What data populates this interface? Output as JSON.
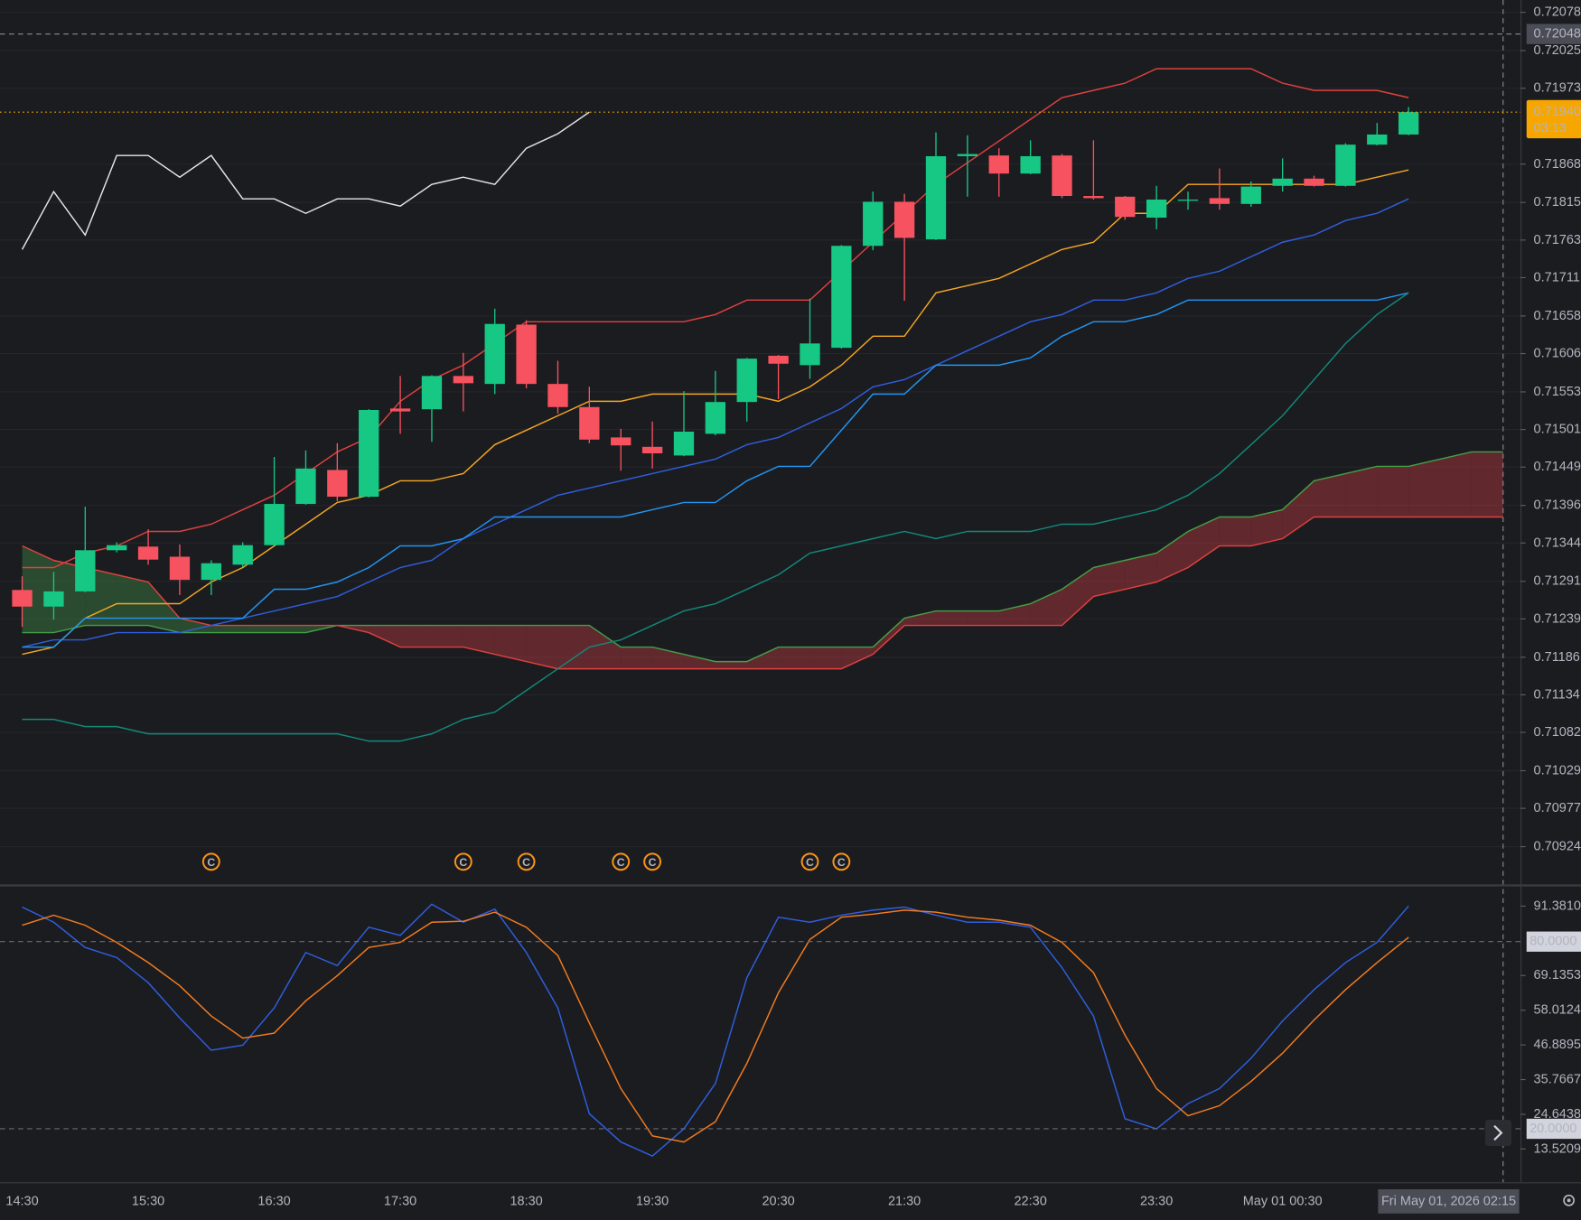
{
  "chart_data": [
    {
      "type": "candlestick",
      "categories": [
        "14:30",
        null,
        null,
        null,
        "15:30",
        null,
        null,
        null,
        "16:30",
        null,
        null,
        null,
        "17:30",
        null,
        null,
        null,
        "18:30",
        null,
        null,
        null,
        "19:30",
        null,
        null,
        null,
        "20:30",
        null,
        null,
        null,
        "21:30",
        null,
        null,
        null,
        "22:30",
        null,
        null,
        null,
        "23:30",
        null,
        null,
        null,
        "May 01 00:30",
        null,
        null,
        null,
        null,
        null,
        null,
        null
      ],
      "open": [
        0.71279,
        0.71256,
        0.71277,
        0.71334,
        0.71339,
        0.71325,
        0.71293,
        0.71314,
        0.71341,
        0.71398,
        0.71445,
        0.71408,
        0.7153,
        0.71529,
        0.71575,
        0.71564,
        0.71646,
        0.71564,
        0.71532,
        0.7149,
        0.71477,
        0.71465,
        0.71495,
        0.71539,
        0.71603,
        0.7159,
        0.71614,
        0.71755,
        0.71816,
        0.71764,
        0.71879,
        0.7188,
        0.71855,
        0.7188,
        0.71824,
        0.71823,
        0.71794,
        0.71818,
        0.71821,
        0.71813,
        0.71838,
        0.71848,
        0.71838,
        0.71895,
        0.71909,
        null,
        null,
        null
      ],
      "high": [
        0.71298,
        0.71304,
        0.71394,
        0.71345,
        0.71363,
        0.71342,
        0.7132,
        0.71345,
        0.71463,
        0.71472,
        0.71482,
        0.71529,
        0.71575,
        0.71576,
        0.71607,
        0.71668,
        0.71652,
        0.71596,
        0.7156,
        0.71502,
        0.71512,
        0.71554,
        0.71582,
        0.716,
        0.71604,
        0.71682,
        0.71756,
        0.7183,
        0.71827,
        0.71912,
        0.71908,
        0.7189,
        0.71901,
        0.71882,
        0.71901,
        0.71824,
        0.71838,
        0.7183,
        0.71862,
        0.71844,
        0.71876,
        0.71852,
        0.71897,
        0.71925,
        0.71947,
        null,
        null,
        null
      ],
      "low": [
        0.71228,
        0.71238,
        0.71276,
        0.71331,
        0.71314,
        0.71272,
        0.71272,
        0.71311,
        0.7134,
        0.71397,
        0.71402,
        0.71407,
        0.71495,
        0.71484,
        0.71526,
        0.7155,
        0.71558,
        0.71523,
        0.71482,
        0.71444,
        0.71447,
        0.71464,
        0.71493,
        0.71512,
        0.71543,
        0.71571,
        0.71613,
        0.71749,
        0.71679,
        0.71763,
        0.71823,
        0.71823,
        0.71854,
        0.71821,
        0.71819,
        0.71791,
        0.71778,
        0.71805,
        0.71805,
        0.71809,
        0.7183,
        0.71837,
        0.71837,
        0.71894,
        0.71908,
        null,
        null,
        null
      ],
      "close": [
        0.71256,
        0.71277,
        0.71334,
        0.71341,
        0.71321,
        0.71293,
        0.71316,
        0.71341,
        0.71398,
        0.71447,
        0.71408,
        0.71528,
        0.71526,
        0.71575,
        0.71565,
        0.71647,
        0.71564,
        0.71532,
        0.71487,
        0.71479,
        0.71468,
        0.71498,
        0.71539,
        0.71599,
        0.71592,
        0.7162,
        0.71755,
        0.71816,
        0.71766,
        0.71879,
        0.71882,
        0.71855,
        0.71879,
        0.71824,
        0.71821,
        0.71795,
        0.71819,
        0.71819,
        0.71813,
        0.71837,
        0.71848,
        0.71838,
        0.71895,
        0.71909,
        0.7194,
        null,
        null,
        null
      ],
      "up_color": "#17c784",
      "down_color": "#f7525f",
      "series": [
        {
          "color": "#e0413f",
          "values": [
            0.7131,
            0.7131,
            0.7133,
            0.7134,
            0.7136,
            0.7136,
            0.7137,
            0.7139,
            0.7141,
            0.7144,
            0.7147,
            0.7149,
            0.7154,
            0.7157,
            0.7159,
            0.7162,
            0.7165,
            0.7165,
            0.7165,
            0.7165,
            0.7165,
            0.7165,
            0.7166,
            0.7168,
            0.7168,
            0.7168,
            0.7172,
            0.7176,
            0.718,
            0.7184,
            0.7187,
            0.719,
            0.7193,
            0.7196,
            0.7197,
            0.7198,
            0.72,
            0.72,
            0.72,
            0.72,
            0.7198,
            0.7197,
            0.7197,
            0.7197,
            0.7196,
            null,
            null,
            null
          ]
        },
        {
          "color": "#f5a623",
          "values": [
            0.7119,
            0.712,
            0.7124,
            0.7126,
            0.7126,
            0.7126,
            0.7129,
            0.7131,
            0.7134,
            0.7137,
            0.714,
            0.7141,
            0.7143,
            0.7143,
            0.7144,
            0.7148,
            0.715,
            0.7152,
            0.7154,
            0.7154,
            0.7155,
            0.7155,
            0.7155,
            0.7155,
            0.7154,
            0.7156,
            0.7159,
            0.7163,
            0.7163,
            0.7169,
            0.717,
            0.7171,
            0.7173,
            0.7175,
            0.7176,
            0.718,
            0.718,
            0.7184,
            0.7184,
            0.7184,
            0.7184,
            0.7184,
            0.7184,
            0.7185,
            0.7186,
            null,
            null,
            null
          ]
        },
        {
          "color": "#2f5fe0",
          "values": [
            0.712,
            0.7121,
            0.7121,
            0.7122,
            0.7122,
            0.7122,
            0.7123,
            0.7124,
            0.7125,
            0.7126,
            0.7127,
            0.7129,
            0.7131,
            0.7132,
            0.7135,
            0.7137,
            0.7139,
            0.7141,
            0.7142,
            0.7143,
            0.7144,
            0.7145,
            0.7146,
            0.7148,
            0.7149,
            0.7151,
            0.7153,
            0.7156,
            0.7157,
            0.7159,
            0.7161,
            0.7163,
            0.7165,
            0.7166,
            0.7168,
            0.7168,
            0.7169,
            0.7171,
            0.7172,
            0.7174,
            0.7176,
            0.7177,
            0.7179,
            0.718,
            0.7182,
            null,
            null,
            null
          ]
        },
        {
          "color": "#2196f3",
          "values": [
            0.712,
            0.712,
            0.7124,
            0.7124,
            0.7124,
            0.7124,
            0.7124,
            0.7124,
            0.7128,
            0.7128,
            0.7129,
            0.7131,
            0.7134,
            0.7134,
            0.7135,
            0.7138,
            0.7138,
            0.7138,
            0.7138,
            0.7138,
            0.7139,
            0.714,
            0.714,
            0.7143,
            0.7145,
            0.7145,
            0.715,
            0.7155,
            0.7155,
            0.7159,
            0.7159,
            0.7159,
            0.716,
            0.7163,
            0.7165,
            0.7165,
            0.7166,
            0.7168,
            0.7168,
            0.7168,
            0.7168,
            0.7168,
            0.7168,
            0.7168,
            0.7169,
            null,
            null,
            null
          ]
        },
        {
          "color": "#12897a",
          "values": [
            0.711,
            0.711,
            0.7109,
            0.7109,
            0.7108,
            0.7108,
            0.7108,
            0.7108,
            0.7108,
            0.7108,
            0.7108,
            0.7107,
            0.7107,
            0.7108,
            0.711,
            0.7111,
            0.7114,
            0.7117,
            0.712,
            0.7121,
            0.7123,
            0.7125,
            0.7126,
            0.7128,
            0.713,
            0.7133,
            0.7134,
            0.7135,
            0.7136,
            0.7135,
            0.7136,
            0.7136,
            0.7136,
            0.7137,
            0.7137,
            0.7138,
            0.7139,
            0.7141,
            0.7144,
            0.7148,
            0.7152,
            0.7157,
            0.7162,
            0.7166,
            0.7169,
            null,
            null,
            null
          ]
        },
        {
          "color": "#e6e6e6",
          "values": [
            0.7175,
            0.7183,
            0.7177,
            0.7188,
            0.7188,
            0.7185,
            0.7188,
            0.7182,
            0.7182,
            0.718,
            0.7182,
            0.7182,
            0.7181,
            0.7184,
            0.7185,
            0.7184,
            0.7189,
            0.7191,
            0.7194,
            null,
            null,
            null,
            null,
            null,
            null,
            null,
            null,
            null,
            null,
            null,
            null,
            null,
            null,
            null,
            null,
            null,
            null,
            null,
            null,
            null,
            null,
            null,
            null,
            null,
            null,
            null,
            null,
            null
          ]
        }
      ],
      "cloud": {
        "lines": [
          {
            "color": "#43a047",
            "values": [
              0.7122,
              0.7122,
              0.7123,
              0.7123,
              0.7123,
              0.7122,
              0.7122,
              0.7122,
              0.7122,
              0.7122,
              0.7123,
              0.7123,
              0.7123,
              0.7123,
              0.7123,
              0.7123,
              0.7123,
              0.7123,
              0.7123,
              0.712,
              0.712,
              0.7119,
              0.7118,
              0.7118,
              0.712,
              0.712,
              0.712,
              0.712,
              0.7124,
              0.7125,
              0.7125,
              0.7125,
              0.7126,
              0.7128,
              0.7131,
              0.7132,
              0.7133,
              0.7136,
              0.7138,
              0.7138,
              0.7139,
              0.7143,
              0.7144,
              0.7145,
              0.7145,
              0.7146,
              0.7147,
              0.7147
            ]
          },
          {
            "color": "#e0413f",
            "values": [
              0.7134,
              0.7132,
              0.7131,
              0.713,
              0.7129,
              0.7124,
              0.7123,
              0.7123,
              0.7123,
              0.7123,
              0.7123,
              0.7122,
              0.712,
              0.712,
              0.712,
              0.7119,
              0.7118,
              0.7117,
              0.7117,
              0.7117,
              0.7117,
              0.7117,
              0.7117,
              0.7117,
              0.7117,
              0.7117,
              0.7117,
              0.7119,
              0.7123,
              0.7123,
              0.7123,
              0.7123,
              0.7123,
              0.7123,
              0.7127,
              0.7128,
              0.7129,
              0.7131,
              0.7134,
              0.7134,
              0.7135,
              0.7138,
              0.7138,
              0.7138,
              0.7138,
              0.7138,
              0.7138,
              0.7138
            ]
          }
        ],
        "fill_first_above": "rgba(214,60,70,0.38)",
        "fill_second_above": "rgba(76,175,80,0.32)"
      },
      "signals": [
        null,
        null,
        null,
        null,
        null,
        null,
        "C",
        null,
        null,
        null,
        null,
        null,
        null,
        null,
        "C",
        null,
        "C",
        null,
        null,
        "C",
        "C",
        null,
        null,
        null,
        null,
        "C",
        "C",
        null,
        null,
        null,
        null,
        null,
        null,
        null,
        null,
        null,
        null,
        null,
        null,
        null,
        null,
        null,
        null,
        null,
        null,
        null,
        null,
        null
      ],
      "signal_color": "#f7931a",
      "ylim": [
        0.70871,
        0.72095
      ],
      "yticks": [
        0.72078,
        0.72025,
        0.71973,
        0.71868,
        0.71815,
        0.71763,
        0.71711,
        0.71658,
        0.71606,
        0.71553,
        0.71501,
        0.71449,
        0.71396,
        0.71344,
        0.71291,
        0.71239,
        0.71186,
        0.71134,
        0.71082,
        0.71029,
        0.70977,
        0.70924
      ],
      "grid": true,
      "crosshair_price": 0.72048,
      "crosshair_time": "Fri May 01, 2026 02:15",
      "last_price": {
        "value": 0.7194,
        "label": "0.71940"
      },
      "last_price_color": "#f7a600",
      "countdown": "03:13"
    },
    {
      "type": "line",
      "series": [
        {
          "color": "#2f5fe0",
          "values": [
            91.06,
            86.21,
            78.13,
            74.9,
            66.83,
            55.52,
            45.18,
            46.8,
            58.75,
            76.52,
            72.32,
            84.6,
            82.0,
            92.0,
            86.21,
            90.4,
            76.52,
            58.75,
            24.83,
            15.78,
            11.26,
            19.98,
            34.52,
            68.44,
            87.83,
            86.21,
            88.47,
            90.09,
            91.06,
            88.47,
            86.21,
            86.21,
            84.6,
            71.67,
            56.17,
            23.22,
            19.98,
            28.06,
            32.9,
            42.6,
            54.55,
            64.6,
            73.29,
            79.75,
            91.38,
            null,
            null,
            null
          ]
        },
        {
          "color": "#f57c1f",
          "values": [
            85.24,
            88.47,
            85.24,
            79.75,
            73.29,
            65.86,
            56.17,
            49.06,
            50.67,
            61.01,
            69.09,
            78.13,
            79.75,
            86.21,
            86.53,
            89.44,
            84.6,
            75.55,
            53.91,
            32.9,
            17.72,
            15.78,
            22.24,
            40.98,
            63.6,
            80.72,
            87.83,
            88.8,
            90.09,
            89.44,
            87.83,
            86.86,
            85.24,
            79.75,
            70.06,
            50.03,
            32.9,
            24.18,
            27.41,
            35.17,
            44.22,
            54.87,
            64.6,
            73.29,
            81.37,
            null,
            null,
            null
          ]
        }
      ],
      "ylim": [
        2.86,
        97.52
      ],
      "yticks": [
        {
          "value": 91.381,
          "label": "91.3810"
        },
        {
          "value": 69.1353,
          "label": "69.1353"
        },
        {
          "value": 58.0124,
          "label": "58.0124"
        },
        {
          "value": 46.8895,
          "label": "46.8895"
        },
        {
          "value": 35.7667,
          "label": "35.7667"
        },
        {
          "value": 24.6438,
          "label": "24.6438"
        },
        {
          "value": 13.5209,
          "label": "13.5209"
        }
      ],
      "levels": [
        {
          "value": 80,
          "label": "80.0000"
        },
        {
          "value": 20,
          "label": "20.0000"
        }
      ]
    }
  ]
}
